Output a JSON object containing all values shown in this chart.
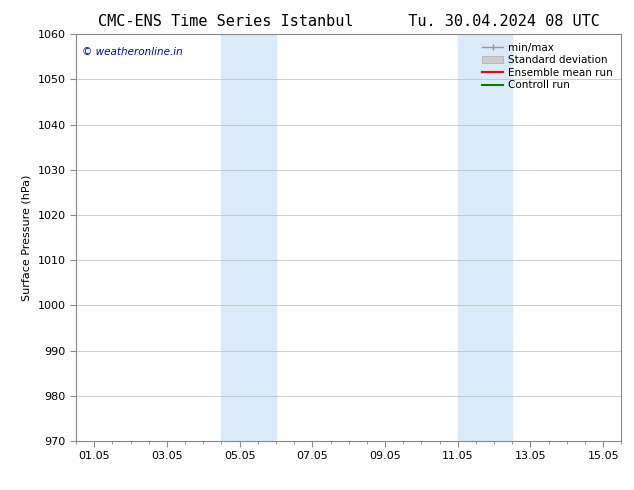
{
  "title": "CMC-ENS Time Series Istanbul      Tu. 30.04.2024 08 UTC",
  "ylabel": "Surface Pressure (hPa)",
  "ylim": [
    970,
    1060
  ],
  "yticks": [
    970,
    980,
    990,
    1000,
    1010,
    1020,
    1030,
    1040,
    1050,
    1060
  ],
  "xtick_labels": [
    "01.05",
    "03.05",
    "05.05",
    "07.05",
    "09.05",
    "11.05",
    "13.05",
    "15.05"
  ],
  "xtick_positions": [
    1,
    3,
    5,
    7,
    9,
    11,
    13,
    15
  ],
  "xlim": [
    0.5,
    15.5
  ],
  "shade_regions": [
    {
      "x_start": 4.5,
      "x_end": 6.0
    },
    {
      "x_start": 11.0,
      "x_end": 12.5
    }
  ],
  "shade_color": "#daeaf8",
  "background_color": "#ffffff",
  "watermark_text": "© weatheronline.in",
  "watermark_color": "#0000cc",
  "grid_color": "#bbbbbb",
  "title_fontsize": 11,
  "axis_fontsize": 8,
  "legend_fontsize": 7.5
}
